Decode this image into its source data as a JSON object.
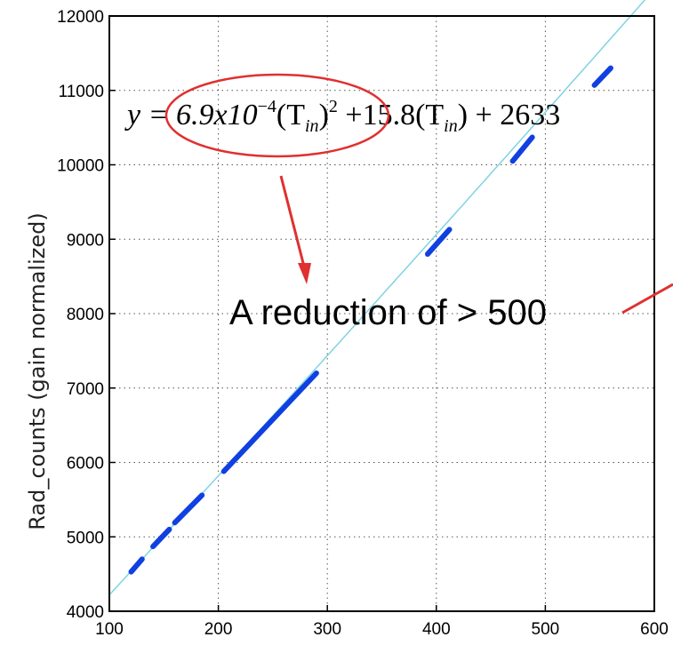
{
  "chart_data": {
    "type": "scatter",
    "title": "",
    "xlabel": "",
    "ylabel": "Rad_counts (gain normalized)",
    "xlim": [
      100,
      600
    ],
    "ylim": [
      4000,
      12000
    ],
    "x_ticks": [
      "100",
      "200",
      "300",
      "400",
      "500",
      "600"
    ],
    "y_ticks": [
      "4000",
      "5000",
      "6000",
      "7000",
      "8000",
      "9000",
      "10000",
      "11000",
      "12000"
    ],
    "grid": true,
    "fit_line": {
      "equation_parts": {
        "lead": "y = 6.9x10",
        "exp": "−4",
        "t1_open": "(T",
        "sub": "in",
        "t1_close": ")",
        "sq": "2",
        "mid": " +15.8(T",
        "sub2": "in",
        "tail": ") + 2633"
      },
      "coefficients": {
        "a": 0.00069,
        "b": 15.8,
        "c": 2633
      },
      "color": "#7fd3e3"
    },
    "series": [
      {
        "color": "#1040e0",
        "segments": [
          {
            "x": [
              120,
              130
            ],
            "y": [
              4530,
              4700
            ]
          },
          {
            "x": [
              140,
              155
            ],
            "y": [
              4870,
              5100
            ]
          },
          {
            "x": [
              160,
              185
            ],
            "y": [
              5190,
              5560
            ]
          },
          {
            "x": [
              205,
              290
            ],
            "y": [
              5880,
              7200
            ]
          },
          {
            "x": [
              392,
              412
            ],
            "y": [
              8800,
              9130
            ]
          },
          {
            "x": [
              470,
              488
            ],
            "y": [
              10050,
              10370
            ]
          },
          {
            "x": [
              545,
              560
            ],
            "y": [
              11070,
              11300
            ]
          }
        ]
      }
    ],
    "annotations": {
      "callout_text": "A reduction of > 500",
      "highlight_color": "#e03030"
    }
  }
}
